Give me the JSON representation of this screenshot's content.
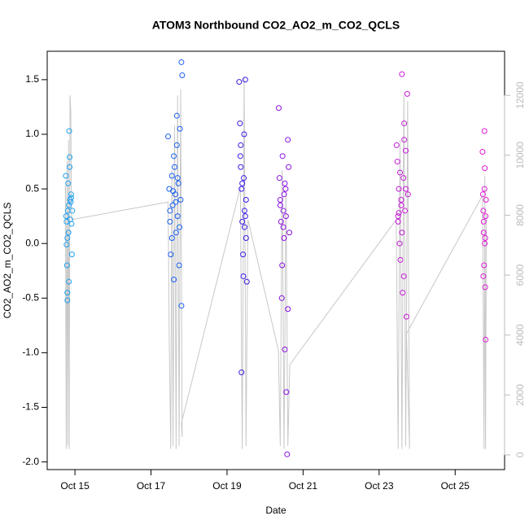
{
  "chart_data": {
    "type": "scatter",
    "title": "ATOM3 Northbound CO2_AO2_m_CO2_QCLS",
    "xlabel": "Date",
    "ylabel": "CO2_AO2_m_CO2_QCLS",
    "xlim": [
      14.27,
      26.3
    ],
    "xticks": [
      {
        "value": 15,
        "label": "Oct 15"
      },
      {
        "value": 17,
        "label": "Oct 17"
      },
      {
        "value": 19,
        "label": "Oct 19"
      },
      {
        "value": 21,
        "label": "Oct 21"
      },
      {
        "value": 23,
        "label": "Oct 23"
      },
      {
        "value": 25,
        "label": "Oct 25"
      }
    ],
    "ylim": [
      -2.07,
      1.76
    ],
    "yticks": [
      {
        "value": -2,
        "label": "-2.0"
      },
      -1.5,
      {
        "value": -1,
        "label": "-1.0"
      },
      -0.5,
      {
        "value": 0,
        "label": "0.0"
      },
      0.5,
      {
        "value": 1,
        "label": "1.0"
      },
      1.5
    ],
    "y2lim": [
      -490,
      13470
    ],
    "y2ticks": [
      0,
      2000,
      4000,
      6000,
      8000,
      10000,
      12000
    ],
    "y2tick_color": "#bbbbbb",
    "series": [
      {
        "type": "line",
        "axis": "y2",
        "color": "#c8c8c8",
        "x": [
          14.75,
          14.77,
          14.79,
          14.81,
          14.83,
          14.85,
          14.87,
          14.89,
          14.91,
          17.45,
          17.48,
          17.52,
          17.55,
          17.58,
          17.62,
          17.66,
          17.7,
          17.74,
          17.78,
          17.82,
          17.8,
          19.35,
          19.4,
          19.45,
          19.5,
          19.55,
          20.35,
          20.4,
          20.45,
          20.5,
          20.55,
          20.6,
          20.65,
          23.45,
          23.5,
          23.55,
          23.6,
          23.65,
          23.7,
          23.75,
          23.8,
          23.72,
          25.72,
          25.76,
          25.78,
          25.8,
          25.82
        ],
        "values": [
          9000,
          200,
          9800,
          300,
          10500,
          200,
          12000,
          11500,
          7850,
          8440,
          3800,
          200,
          9500,
          300,
          11000,
          200,
          12000,
          300,
          12200,
          600,
          1060,
          8930,
          200,
          12600,
          300,
          7850,
          3500,
          300,
          9500,
          200,
          8800,
          300,
          3010,
          7850,
          200,
          10500,
          200,
          12000,
          300,
          11800,
          200,
          4050,
          8660,
          200,
          9300,
          200,
          8000
        ]
      },
      {
        "color": "#1fa0ef",
        "x": [
          14.76,
          14.77,
          14.78,
          14.79,
          14.8,
          14.8,
          14.81,
          14.82,
          14.83,
          14.84,
          14.85,
          14.86,
          14.87,
          14.88,
          14.89,
          14.9,
          14.91,
          14.92,
          14.93,
          14.8,
          14.78,
          14.86,
          14.9,
          14.84
        ],
        "values": [
          0.62,
          0.25,
          -0.01,
          -0.2,
          -0.45,
          -0.52,
          0.3,
          0.55,
          0.1,
          0.35,
          1.03,
          0.79,
          0.4,
          0.22,
          0.38,
          0.42,
          0.18,
          -0.1,
          0.3,
          0.05,
          0.2,
          0.7,
          0.45,
          -0.35
        ]
      },
      {
        "color": "#1a5fee",
        "x": [
          17.45,
          17.48,
          17.5,
          17.52,
          17.55,
          17.57,
          17.6,
          17.62,
          17.64,
          17.66,
          17.68,
          17.7,
          17.72,
          17.74,
          17.76,
          17.78,
          17.8,
          17.82,
          17.5,
          17.55,
          17.6,
          17.65,
          17.7,
          17.75,
          17.8,
          17.58,
          17.68
        ],
        "values": [
          0.98,
          0.5,
          0.2,
          -0.1,
          0.62,
          0.35,
          -0.33,
          0.7,
          0.45,
          0.1,
          0.9,
          0.25,
          0.55,
          -0.2,
          1.05,
          0.4,
          1.66,
          1.54,
          0.3,
          0.05,
          0.8,
          0.38,
          0.6,
          0.15,
          -0.57,
          0.48,
          1.17
        ]
      },
      {
        "color": "#3a1ae8",
        "x": [
          19.32,
          19.34,
          19.36,
          19.38,
          19.4,
          19.42,
          19.44,
          19.46,
          19.48,
          19.5,
          19.52,
          19.35,
          19.4,
          19.45,
          19.5,
          19.38,
          19.43,
          19.48,
          19.36,
          19.46
        ],
        "values": [
          1.48,
          1.1,
          0.9,
          0.5,
          0.2,
          -0.1,
          0.6,
          0.3,
          1.5,
          0.05,
          -0.35,
          0.8,
          0.55,
          1.0,
          0.4,
          -1.18,
          -0.3,
          0.25,
          0.7,
          0.15
        ]
      },
      {
        "color": "#8a12e0",
        "x": [
          20.36,
          20.38,
          20.4,
          20.42,
          20.44,
          20.46,
          20.48,
          20.5,
          20.52,
          20.54,
          20.56,
          20.58,
          20.6,
          20.62,
          20.64,
          20.4,
          20.45,
          20.5,
          20.55,
          20.6,
          20.48,
          20.52
        ],
        "values": [
          1.24,
          0.6,
          0.4,
          0.2,
          -0.5,
          0.8,
          0.3,
          0.05,
          -0.97,
          0.5,
          -1.36,
          -1.93,
          0.95,
          0.7,
          0.1,
          0.35,
          -0.2,
          0.45,
          0.25,
          -0.6,
          0.15,
          0.55
        ]
      },
      {
        "color": "#c81ad8",
        "x": [
          23.46,
          23.48,
          23.5,
          23.52,
          23.54,
          23.56,
          23.58,
          23.6,
          23.62,
          23.64,
          23.66,
          23.68,
          23.7,
          23.72,
          23.74,
          23.76,
          23.5,
          23.55,
          23.6,
          23.65,
          23.7,
          23.58,
          23.66,
          23.52
        ],
        "values": [
          0.9,
          0.75,
          0.2,
          0.5,
          0.0,
          -0.15,
          0.35,
          1.55,
          -0.45,
          0.6,
          1.1,
          0.3,
          0.85,
          -0.67,
          1.37,
          0.45,
          0.25,
          0.65,
          0.1,
          -0.3,
          0.5,
          0.4,
          0.95,
          0.28
        ]
      },
      {
        "color": "#e01ad6",
        "x": [
          25.72,
          25.73,
          25.74,
          25.75,
          25.76,
          25.77,
          25.78,
          25.79,
          25.8,
          25.81,
          25.75,
          25.78,
          25.8,
          25.74,
          25.77,
          25.79
        ],
        "values": [
          0.84,
          0.45,
          0.3,
          0.1,
          -0.2,
          1.03,
          0.69,
          -0.4,
          -0.88,
          0.4,
          0.2,
          0.0,
          0.25,
          -0.3,
          0.5,
          0.05
        ]
      }
    ]
  }
}
